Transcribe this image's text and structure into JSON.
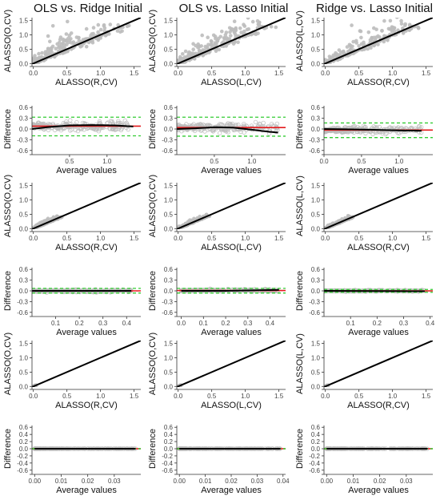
{
  "column_titles": [
    "OLS vs. Ridge Initial",
    "OLS vs. Lasso Initial",
    "Ridge vs. Lasso Initial"
  ],
  "colors": {
    "points": "#bdbdbd",
    "identity_line": "#000000",
    "smooth": "#000000",
    "mean_line": "#e31a1c",
    "limits": "#33cc33",
    "axis": "#333333"
  },
  "chart_data": [
    {
      "type": "scatter",
      "row": 0,
      "col": 0,
      "ylabel": "ALASSO(O,CV)",
      "xlabel": "ALASSO(R,CV)",
      "xlim": [
        -0.02,
        1.6
      ],
      "ylim": [
        -0.02,
        1.6
      ],
      "xticks": [
        0.0,
        0.5,
        1.0,
        1.5
      ],
      "yticks": [
        0.0,
        0.5,
        1.0,
        1.5
      ],
      "spread": 0.35,
      "max_mean": 1.3,
      "seed": 11,
      "identity_line": true
    },
    {
      "type": "scatter",
      "row": 0,
      "col": 1,
      "ylabel": "ALASSO(O,CV)",
      "xlabel": "ALASSO(L,CV)",
      "xlim": [
        -0.02,
        1.6
      ],
      "ylim": [
        -0.02,
        1.6
      ],
      "xticks": [
        0.0,
        0.5,
        1.0,
        1.5
      ],
      "yticks": [
        0.0,
        0.5,
        1.0,
        1.5
      ],
      "spread": 0.33,
      "max_mean": 1.3,
      "seed": 12,
      "identity_line": true
    },
    {
      "type": "scatter",
      "row": 0,
      "col": 2,
      "ylabel": "ALASSO(L,CV)",
      "xlabel": "ALASSO(R,CV)",
      "xlim": [
        -0.02,
        1.6
      ],
      "ylim": [
        -0.02,
        1.6
      ],
      "xticks": [
        0.0,
        0.5,
        1.0,
        1.5
      ],
      "yticks": [
        0.0,
        0.5,
        1.0,
        1.5
      ],
      "spread": 0.3,
      "max_mean": 1.3,
      "seed": 13,
      "identity_line": true
    },
    {
      "type": "scatter",
      "row": 1,
      "col": 0,
      "ylabel": "Difference",
      "xlabel": "Average values",
      "xlim": [
        0.0,
        1.45
      ],
      "ylim": [
        -0.65,
        0.65
      ],
      "xticks": [
        0.5,
        1.0
      ],
      "yticks": [
        -0.6,
        -0.3,
        0.0,
        0.3,
        0.6
      ],
      "mean_diff": 0.08,
      "loa": [
        -0.19,
        0.33
      ],
      "spread": 0.12,
      "max_mean": 1.35,
      "seed": 21,
      "smooth": [
        [
          0.0,
          0.0
        ],
        [
          0.2,
          0.05
        ],
        [
          0.5,
          0.1
        ],
        [
          0.8,
          0.11
        ],
        [
          1.1,
          0.1
        ],
        [
          1.35,
          0.07
        ]
      ]
    },
    {
      "type": "scatter",
      "row": 1,
      "col": 1,
      "ylabel": "Difference",
      "xlabel": "Average values",
      "xlim": [
        0.0,
        1.45
      ],
      "ylim": [
        -0.65,
        0.65
      ],
      "xticks": [
        0.5,
        1.0
      ],
      "yticks": [
        -0.6,
        -0.3,
        0.0,
        0.3,
        0.6
      ],
      "mean_diff": 0.04,
      "loa": [
        -0.2,
        0.33
      ],
      "spread": 0.12,
      "max_mean": 1.35,
      "seed": 22,
      "smooth": [
        [
          0.0,
          0.0
        ],
        [
          0.25,
          0.02
        ],
        [
          0.5,
          0.05
        ],
        [
          0.75,
          0.04
        ],
        [
          1.0,
          -0.02
        ],
        [
          1.2,
          -0.07
        ],
        [
          1.35,
          -0.1
        ]
      ]
    },
    {
      "type": "scatter",
      "row": 1,
      "col": 2,
      "ylabel": "Difference",
      "xlabel": "Average values",
      "xlim": [
        0.0,
        1.45
      ],
      "ylim": [
        -0.65,
        0.65
      ],
      "xticks": [
        0.0,
        0.5,
        1.0
      ],
      "yticks": [
        -0.6,
        -0.3,
        0.0,
        0.3,
        0.6
      ],
      "mean_diff": -0.03,
      "loa": [
        -0.24,
        0.17
      ],
      "spread": 0.1,
      "max_mean": 1.3,
      "seed": 23,
      "smooth": [
        [
          0.0,
          0.0
        ],
        [
          0.3,
          -0.01
        ],
        [
          0.6,
          -0.02
        ],
        [
          1.0,
          -0.04
        ],
        [
          1.3,
          -0.05
        ]
      ]
    },
    {
      "type": "scatter",
      "row": 2,
      "col": 0,
      "ylabel": "ALASSO(O,CV)",
      "xlabel": "ALASSO(R,CV)",
      "xlim": [
        -0.02,
        1.6
      ],
      "ylim": [
        -0.02,
        1.6
      ],
      "xticks": [
        0.0,
        0.5,
        1.0,
        1.5
      ],
      "yticks": [
        0.0,
        0.5,
        1.0,
        1.5
      ],
      "spread": 0.06,
      "max_mean": 0.4,
      "seed": 31,
      "identity_line": true
    },
    {
      "type": "scatter",
      "row": 2,
      "col": 1,
      "ylabel": "ALASSO(O,CV)",
      "xlabel": "ALASSO(L,CV)",
      "xlim": [
        -0.02,
        1.6
      ],
      "ylim": [
        -0.02,
        1.6
      ],
      "xticks": [
        0.0,
        0.5,
        1.0,
        1.5
      ],
      "yticks": [
        0.0,
        0.5,
        1.0,
        1.5
      ],
      "spread": 0.06,
      "max_mean": 0.45,
      "seed": 32,
      "identity_line": true
    },
    {
      "type": "scatter",
      "row": 2,
      "col": 2,
      "ylabel": "ALASSO(L,CV)",
      "xlabel": "ALASSO(R,CV)",
      "xlim": [
        -0.02,
        1.6
      ],
      "ylim": [
        -0.02,
        1.6
      ],
      "xticks": [
        0.0,
        0.5,
        1.0,
        1.5
      ],
      "yticks": [
        0.0,
        0.5,
        1.0,
        1.5
      ],
      "spread": 0.05,
      "max_mean": 0.4,
      "seed": 33,
      "identity_line": true
    },
    {
      "type": "scatter",
      "row": 3,
      "col": 0,
      "ylabel": "Difference",
      "xlabel": "Average values",
      "xlim": [
        0.0,
        0.46
      ],
      "ylim": [
        -0.65,
        0.65
      ],
      "xticks": [
        0.1,
        0.2,
        0.3,
        0.4
      ],
      "yticks": [
        -0.6,
        -0.3,
        0.0,
        0.3,
        0.6
      ],
      "mean_diff": 0.0,
      "loa": [
        -0.06,
        0.07
      ],
      "spread": 0.03,
      "max_mean": 0.42,
      "seed": 41,
      "smooth": [
        [
          0.0,
          0.0
        ],
        [
          0.42,
          0.0
        ]
      ]
    },
    {
      "type": "scatter",
      "row": 3,
      "col": 1,
      "ylabel": "Difference",
      "xlabel": "Average values",
      "xlim": [
        -0.02,
        0.47
      ],
      "ylim": [
        -0.65,
        0.65
      ],
      "xticks": [
        0.0,
        0.1,
        0.2,
        0.3,
        0.4
      ],
      "yticks": [
        -0.6,
        -0.3,
        0.0,
        0.3,
        0.6
      ],
      "mean_diff": 0.01,
      "loa": [
        -0.06,
        0.07
      ],
      "spread": 0.03,
      "max_mean": 0.44,
      "seed": 42,
      "smooth": [
        [
          0.0,
          0.0
        ],
        [
          0.2,
          0.0
        ],
        [
          0.44,
          0.03
        ]
      ]
    },
    {
      "type": "scatter",
      "row": 3,
      "col": 2,
      "ylabel": "Difference",
      "xlabel": "Average values",
      "xlim": [
        0.0,
        0.41
      ],
      "ylim": [
        -0.65,
        0.65
      ],
      "xticks": [
        0.1,
        0.2,
        0.3,
        0.4
      ],
      "yticks": [
        -0.6,
        -0.3,
        0.0,
        0.3,
        0.6
      ],
      "mean_diff": 0.0,
      "loa": [
        -0.04,
        0.04
      ],
      "spread": 0.02,
      "max_mean": 0.38,
      "seed": 43,
      "smooth": [
        [
          0.0,
          0.0
        ],
        [
          0.38,
          -0.01
        ]
      ]
    },
    {
      "type": "scatter",
      "row": 4,
      "col": 0,
      "ylabel": "ALASSO(O,CV)",
      "xlabel": "ALASSO(R,CV)",
      "xlim": [
        -0.02,
        1.6
      ],
      "ylim": [
        -0.02,
        1.6
      ],
      "xticks": [
        0.0,
        0.5,
        1.0,
        1.5
      ],
      "yticks": [
        0.0,
        0.5,
        1.0,
        1.5
      ],
      "spread": 0.004,
      "max_mean": 0.04,
      "seed": 51,
      "identity_line": true
    },
    {
      "type": "scatter",
      "row": 4,
      "col": 1,
      "ylabel": "ALASSO(O,CV)",
      "xlabel": "ALASSO(L,CV)",
      "xlim": [
        -0.02,
        1.6
      ],
      "ylim": [
        -0.02,
        1.6
      ],
      "xticks": [
        0.0,
        0.5,
        1.0,
        1.5
      ],
      "yticks": [
        0.0,
        0.5,
        1.0,
        1.5
      ],
      "spread": 0.004,
      "max_mean": 0.04,
      "seed": 52,
      "identity_line": true
    },
    {
      "type": "scatter",
      "row": 4,
      "col": 2,
      "ylabel": "ALASSO(L,CV)",
      "xlabel": "ALASSO(R,CV)",
      "xlim": [
        -0.02,
        1.6
      ],
      "ylim": [
        -0.02,
        1.6
      ],
      "xticks": [
        0.0,
        0.5,
        1.0,
        1.5
      ],
      "yticks": [
        0.0,
        0.5,
        1.0,
        1.5
      ],
      "spread": 0.004,
      "max_mean": 0.04,
      "seed": 53,
      "identity_line": true
    },
    {
      "type": "scatter",
      "row": 5,
      "col": 0,
      "ylabel": "Difference",
      "xlabel": "Average values",
      "xlim": [
        -0.001,
        0.04
      ],
      "ylim": [
        -0.65,
        0.65
      ],
      "xticks": [
        0.0,
        0.01,
        0.02,
        0.03
      ],
      "xtick_labels": [
        "0.00",
        "0.01",
        "0.02",
        "0.03"
      ],
      "yticks": [
        -0.6,
        -0.4,
        -0.2,
        0.0,
        0.2,
        0.4,
        0.6
      ],
      "mean_diff": 0.0,
      "loa": [
        -0.003,
        0.003
      ],
      "spread": 0.002,
      "max_mean": 0.038,
      "seed": 61,
      "smooth": [
        [
          0.0,
          0.0
        ],
        [
          0.038,
          0.0
        ]
      ]
    },
    {
      "type": "scatter",
      "row": 5,
      "col": 1,
      "ylabel": "Difference",
      "xlabel": "Average values",
      "xlim": [
        -0.001,
        0.041
      ],
      "ylim": [
        -0.65,
        0.65
      ],
      "xticks": [
        0.0,
        0.01,
        0.02,
        0.03,
        0.04
      ],
      "xtick_labels": [
        "0.00",
        "0.01",
        "0.02",
        "0.03",
        "0.04"
      ],
      "yticks": [
        -0.6,
        -0.4,
        -0.2,
        0.0,
        0.2,
        0.4,
        0.6
      ],
      "mean_diff": 0.0,
      "loa": [
        -0.003,
        0.003
      ],
      "spread": 0.002,
      "max_mean": 0.039,
      "seed": 62,
      "smooth": [
        [
          0.0,
          0.0
        ],
        [
          0.039,
          0.0
        ]
      ]
    },
    {
      "type": "scatter",
      "row": 5,
      "col": 2,
      "ylabel": "Difference",
      "xlabel": "Average values",
      "xlim": [
        -0.001,
        0.04
      ],
      "ylim": [
        -0.65,
        0.65
      ],
      "xticks": [
        0.0,
        0.01,
        0.02,
        0.03
      ],
      "xtick_labels": [
        "0.00",
        "0.01",
        "0.02",
        "0.03"
      ],
      "yticks": [
        -0.6,
        -0.4,
        -0.2,
        0.0,
        0.2,
        0.4,
        0.6
      ],
      "mean_diff": 0.0,
      "loa": [
        -0.003,
        0.003
      ],
      "spread": 0.002,
      "max_mean": 0.038,
      "seed": 63,
      "smooth": [
        [
          0.0,
          0.0
        ],
        [
          0.038,
          0.0
        ]
      ]
    }
  ]
}
